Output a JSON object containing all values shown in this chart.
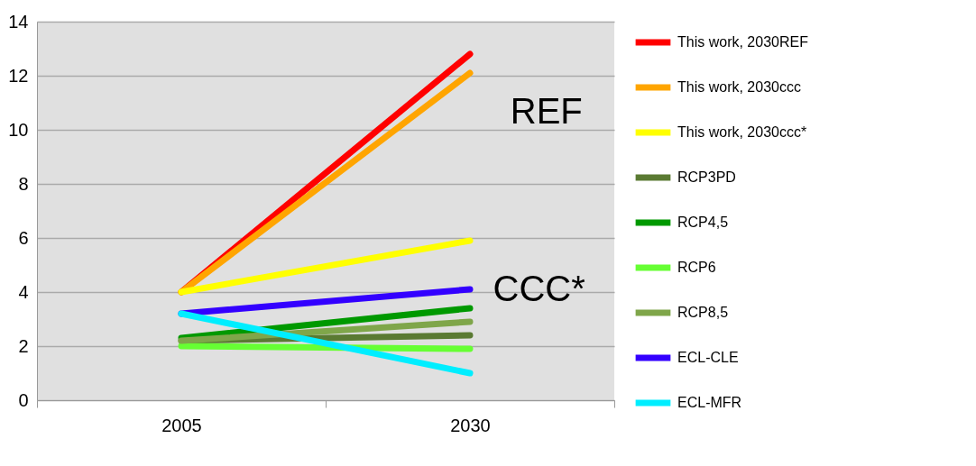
{
  "chart_data": {
    "type": "line",
    "categories": [
      "2005",
      "2030"
    ],
    "series": [
      {
        "name": "This work, 2030REF",
        "color": "#ff0000",
        "values": [
          4.0,
          12.8
        ]
      },
      {
        "name": "This work, 2030ccc",
        "color": "#ffa500",
        "values": [
          4.0,
          12.1
        ]
      },
      {
        "name": "This work, 2030ccc*",
        "color": "#ffff00",
        "values": [
          4.0,
          5.9
        ]
      },
      {
        "name": "RCP3PD",
        "color": "#5a7a32",
        "values": [
          2.2,
          2.4
        ]
      },
      {
        "name": "RCP4,5",
        "color": "#009900",
        "values": [
          2.3,
          3.4
        ]
      },
      {
        "name": "RCP6",
        "color": "#66ff33",
        "values": [
          2.0,
          1.9
        ]
      },
      {
        "name": "RCP8,5",
        "color": "#7fa64a",
        "values": [
          2.2,
          2.9
        ]
      },
      {
        "name": "ECL-CLE",
        "color": "#3300ff",
        "values": [
          3.2,
          4.1
        ]
      },
      {
        "name": "ECL-MFR",
        "color": "#00eeff",
        "values": [
          3.2,
          1.0
        ]
      }
    ],
    "ylim": [
      0,
      14
    ],
    "yticks": [
      0,
      2,
      4,
      6,
      8,
      10,
      12,
      14
    ],
    "grid": "y",
    "legend": "right",
    "marker": "none",
    "line_style": "solid",
    "annotations": [
      "REF",
      "CCC*"
    ]
  }
}
